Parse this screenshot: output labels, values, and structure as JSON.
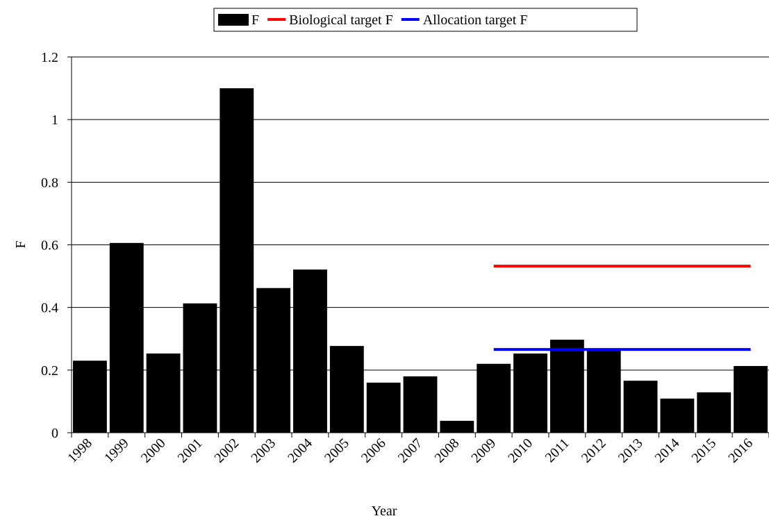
{
  "chart_data": {
    "type": "bar",
    "x_label": "Year",
    "y_label": "F",
    "categories": [
      "1998",
      "1999",
      "2000",
      "2001",
      "2002",
      "2003",
      "2004",
      "2005",
      "2006",
      "2007",
      "2008",
      "2009",
      "2010",
      "2011",
      "2012",
      "2013",
      "2014",
      "2015",
      "2016"
    ],
    "series": [
      {
        "name": "F",
        "type": "bar",
        "color": "#000000",
        "values": [
          0.23,
          0.606,
          0.253,
          0.413,
          1.1,
          0.462,
          0.521,
          0.277,
          0.16,
          0.18,
          0.038,
          0.22,
          0.253,
          0.297,
          0.265,
          0.166,
          0.109,
          0.129,
          0.213
        ]
      },
      {
        "name": "Biological target F",
        "type": "line",
        "color": "#ff0000",
        "values": [
          null,
          null,
          null,
          null,
          null,
          null,
          null,
          null,
          null,
          null,
          null,
          0.532,
          0.532,
          0.532,
          0.532,
          0.532,
          0.532,
          0.532,
          0.532
        ]
      },
      {
        "name": "Allocation target F",
        "type": "line",
        "color": "#0000ff",
        "values": [
          null,
          null,
          null,
          null,
          null,
          null,
          null,
          null,
          null,
          null,
          null,
          0.266,
          0.266,
          0.266,
          0.266,
          0.266,
          0.266,
          0.266,
          0.266
        ]
      }
    ],
    "ylim": [
      0,
      1.2
    ],
    "yticks": [
      0,
      0.2,
      0.4,
      0.6,
      0.8,
      1,
      1.2
    ],
    "grid": true,
    "legend": "top"
  }
}
